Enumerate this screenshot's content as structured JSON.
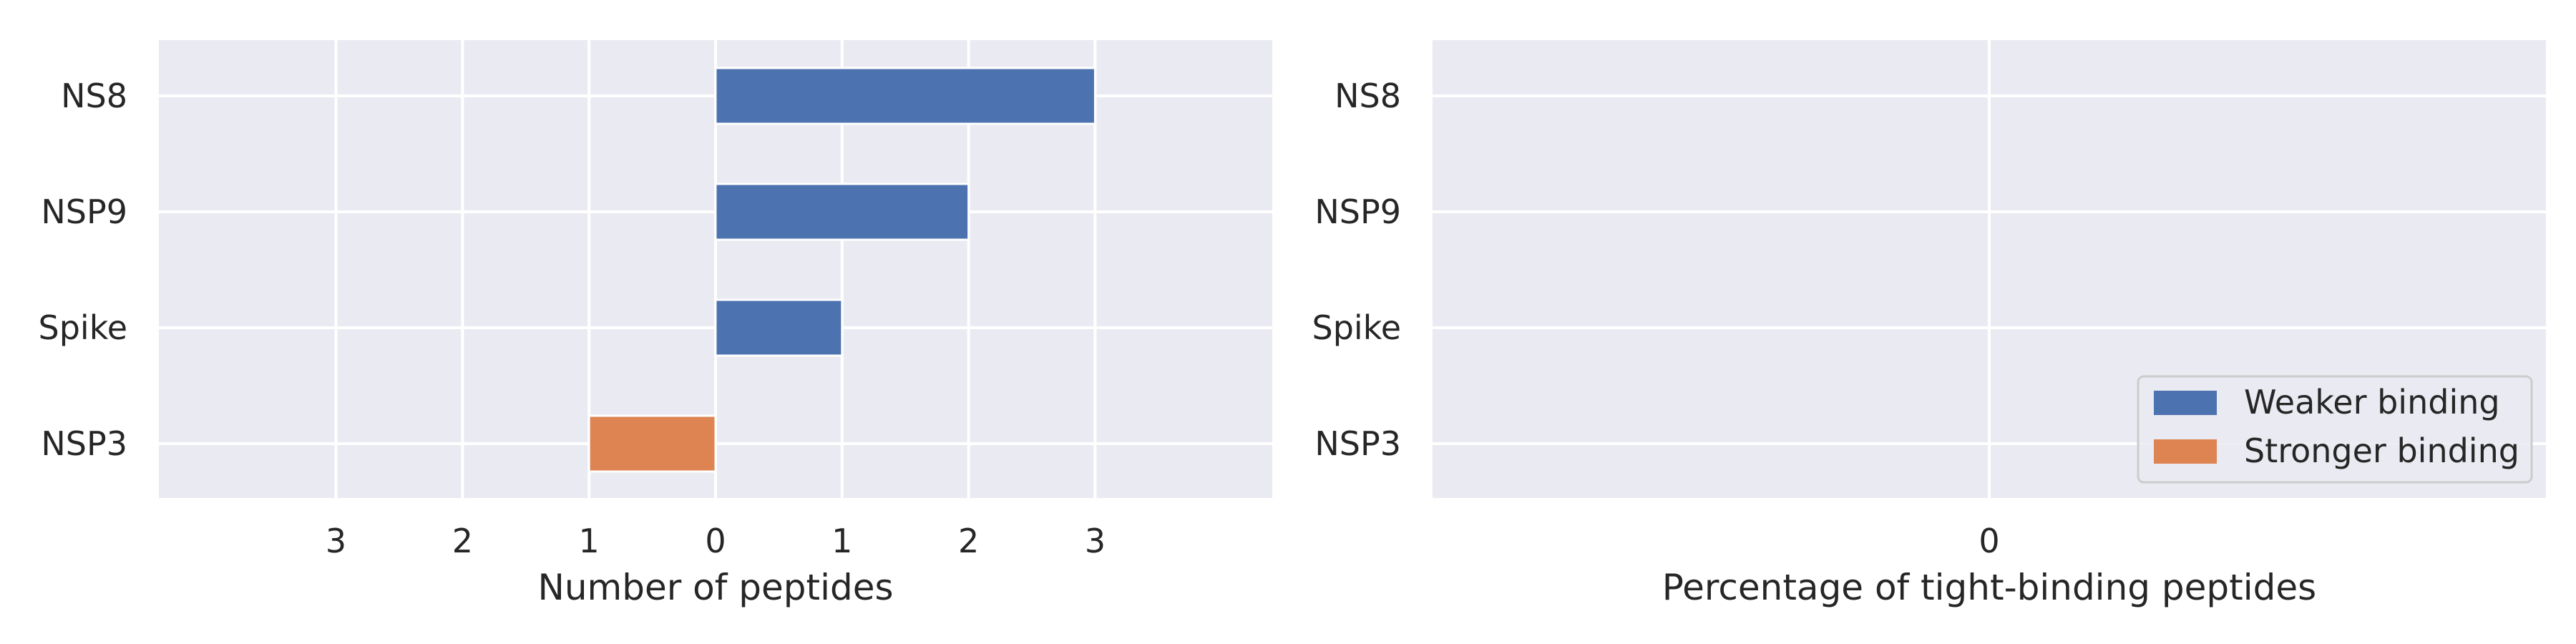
{
  "chart_data": [
    {
      "type": "bar",
      "orientation": "horizontal",
      "categories": [
        "NS8",
        "NSP9",
        "Spike",
        "NSP3"
      ],
      "series": [
        {
          "name": "Weaker binding",
          "values": [
            3,
            2,
            1,
            0
          ],
          "direction": "right",
          "color": "#4c72b0"
        },
        {
          "name": "Stronger binding",
          "values": [
            0,
            0,
            0,
            1
          ],
          "direction": "left",
          "color": "#dd8452"
        }
      ],
      "xlabel": "Number of peptides",
      "xticks": [
        "3",
        "2",
        "1",
        "0",
        "1",
        "2",
        "3"
      ],
      "xlim": [
        -4.4,
        4.4
      ],
      "grid": true
    },
    {
      "type": "bar",
      "orientation": "horizontal",
      "categories": [
        "NS8",
        "NSP9",
        "Spike",
        "NSP3"
      ],
      "series": [],
      "xlabel": "Percentage of tight-binding peptides",
      "xticks": [
        "0"
      ],
      "grid": true
    }
  ],
  "legend": {
    "placement": "lower-right",
    "entries": [
      {
        "label": "Weaker binding",
        "color": "#4c72b0"
      },
      {
        "label": "Stronger binding",
        "color": "#dd8452"
      }
    ]
  },
  "colors": {
    "panel_background": "#eaeaf2",
    "grid": "#ffffff"
  }
}
